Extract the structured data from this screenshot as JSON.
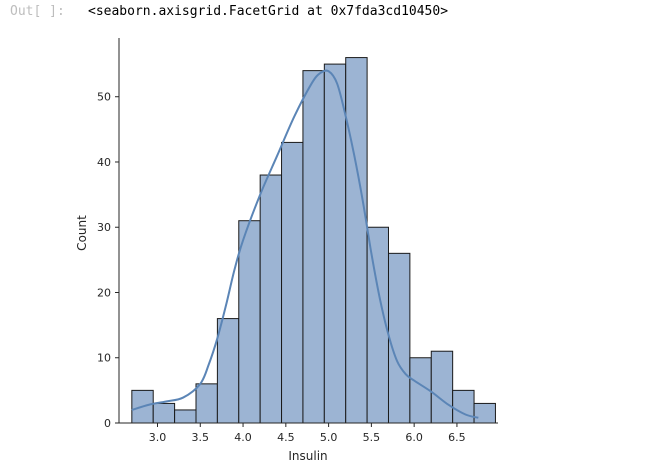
{
  "output": {
    "prompt": "Out[ ]:",
    "text": "<seaborn.axisgrid.FacetGrid at 0x7fda3cd10450>"
  },
  "chart_data": {
    "type": "bar",
    "xlabel": "Insulin",
    "ylabel": "Count",
    "xlim": [
      2.55,
      6.98
    ],
    "ylim": [
      0,
      59
    ],
    "x_ticks": [
      3.0,
      3.5,
      4.0,
      4.5,
      5.0,
      5.5,
      6.0,
      6.5
    ],
    "x_tick_labels": [
      "3.0",
      "3.5",
      "4.0",
      "4.5",
      "5.0",
      "5.5",
      "6.0",
      "6.5"
    ],
    "y_ticks": [
      0,
      10,
      20,
      30,
      40,
      50
    ],
    "y_tick_labels": [
      "0",
      "10",
      "20",
      "30",
      "40",
      "50"
    ],
    "bin_edges": [
      2.7,
      2.95,
      3.2,
      3.45,
      3.7,
      3.95,
      4.2,
      4.45,
      4.7,
      4.95,
      5.2,
      5.45,
      5.7,
      5.95,
      6.2,
      6.45,
      6.7
    ],
    "values": [
      5,
      3,
      2,
      6,
      16,
      31,
      38,
      43,
      54,
      55,
      56,
      30,
      26,
      10,
      11,
      5,
      3
    ],
    "bar_width": 0.25,
    "kde_curve": {
      "x": [
        2.7,
        2.9,
        3.1,
        3.3,
        3.5,
        3.6,
        3.7,
        3.8,
        3.9,
        4.0,
        4.2,
        4.4,
        4.6,
        4.8,
        4.9,
        5.0,
        5.1,
        5.2,
        5.3,
        5.4,
        5.5,
        5.6,
        5.7,
        5.8,
        5.9,
        6.0,
        6.2,
        6.4,
        6.6,
        6.75
      ],
      "y": [
        2,
        2.8,
        3.3,
        3.9,
        6,
        9,
        13,
        18,
        23.5,
        28,
        35,
        41,
        47,
        52,
        53.6,
        53.9,
        52,
        47,
        41,
        34,
        26,
        19,
        13.5,
        9.5,
        7.5,
        6.5,
        4.8,
        2.8,
        1.3,
        0.8
      ]
    },
    "bar_fill": "#9cb4d3",
    "bar_edge": "#1a1a1a",
    "kde_color": "#5b85b6",
    "grid": false,
    "spines": "left-bottom"
  }
}
